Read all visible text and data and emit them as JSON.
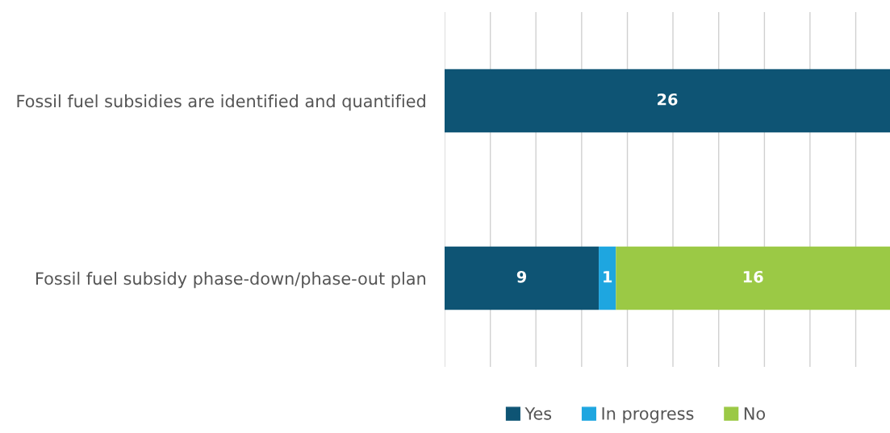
{
  "chart_data": {
    "type": "bar",
    "orientation": "horizontal",
    "stacked": true,
    "categories": [
      "Fossil fuel subsidies are identified and quantified",
      "Fossil fuel subsidy phase-down/phase-out plan"
    ],
    "series": [
      {
        "name": "Yes",
        "color": "#0e5474",
        "values": [
          26,
          9
        ]
      },
      {
        "name": "In progress",
        "color": "#1ea6e0",
        "values": [
          null,
          1
        ]
      },
      {
        "name": "No",
        "color": "#9bc945",
        "values": [
          null,
          16
        ]
      }
    ],
    "xlim": [
      0,
      26
    ],
    "xticks": [
      {
        "value": 0,
        "label": null
      },
      {
        "value": 2.67,
        "label": null
      },
      {
        "value": 5.33,
        "label": null
      },
      {
        "value": 8,
        "label": null
      },
      {
        "value": 10.67,
        "label": null
      },
      {
        "value": 13.33,
        "label": null
      },
      {
        "value": 16,
        "label": null
      },
      {
        "value": 18.67,
        "label": null
      },
      {
        "value": 21.33,
        "label": null
      },
      {
        "value": 24,
        "label": null
      }
    ],
    "grid": "x",
    "data_labels": true,
    "legend": "bottom",
    "tick_labels": "y"
  }
}
